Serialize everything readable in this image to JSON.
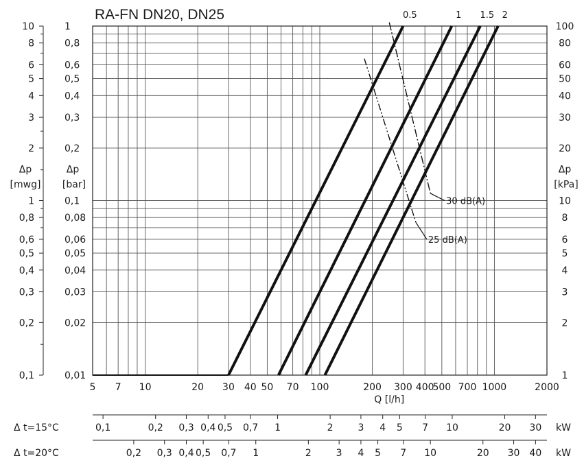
{
  "chart_data": {
    "type": "line",
    "title": "RA-FN  DN20, DN25",
    "x_scale": "log",
    "y_scale": "log",
    "grid": true,
    "xlabel": "Q [l/h]",
    "xlim": [
      5,
      2000
    ],
    "x_ticks": [
      {
        "v": 5,
        "label": "5"
      },
      {
        "v": 7,
        "label": "7"
      },
      {
        "v": 10,
        "label": "10"
      },
      {
        "v": 20,
        "label": "20"
      },
      {
        "v": 30,
        "label": "30"
      },
      {
        "v": 40,
        "label": "40"
      },
      {
        "v": 50,
        "label": "50"
      },
      {
        "v": 70,
        "label": "70"
      },
      {
        "v": 100,
        "label": "100"
      },
      {
        "v": 200,
        "label": "200"
      },
      {
        "v": 300,
        "label": "300"
      },
      {
        "v": 400,
        "label": "400"
      },
      {
        "v": 500,
        "label": "500"
      },
      {
        "v": 700,
        "label": "700"
      },
      {
        "v": 1000,
        "label": "1000"
      },
      {
        "v": 2000,
        "label": "2000"
      }
    ],
    "ylim_bar": [
      0.01,
      1
    ],
    "y_axes": {
      "left_outer": {
        "label_line1": "Δp",
        "label_line2": "[mwg]",
        "ticks": [
          {
            "v": 0.01,
            "label": "0,1"
          },
          {
            "v": 0.02,
            "label": "0,2"
          },
          {
            "v": 0.03,
            "label": "0,3"
          },
          {
            "v": 0.04,
            "label": "0,4"
          },
          {
            "v": 0.05,
            "label": "0,5"
          },
          {
            "v": 0.06,
            "label": "0,6"
          },
          {
            "v": 0.08,
            "label": "0,8"
          },
          {
            "v": 0.1,
            "label": "1"
          },
          {
            "v": 0.2,
            "label": "2"
          },
          {
            "v": 0.3,
            "label": "3"
          },
          {
            "v": 0.4,
            "label": "4"
          },
          {
            "v": 0.5,
            "label": "5"
          },
          {
            "v": 0.6,
            "label": "6"
          },
          {
            "v": 0.8,
            "label": "8"
          },
          {
            "v": 1,
            "label": "10"
          }
        ]
      },
      "left_inner": {
        "label_line1": "Δp",
        "label_line2": "[bar]",
        "ticks": [
          {
            "v": 0.01,
            "label": "0,01"
          },
          {
            "v": 0.02,
            "label": "0,02"
          },
          {
            "v": 0.03,
            "label": "0,03"
          },
          {
            "v": 0.04,
            "label": "0,04"
          },
          {
            "v": 0.05,
            "label": "0,05"
          },
          {
            "v": 0.06,
            "label": "0,06"
          },
          {
            "v": 0.08,
            "label": "0,08"
          },
          {
            "v": 0.1,
            "label": "0,1"
          },
          {
            "v": 0.2,
            "label": "0,2"
          },
          {
            "v": 0.3,
            "label": "0,3"
          },
          {
            "v": 0.4,
            "label": "0,4"
          },
          {
            "v": 0.5,
            "label": "0,5"
          },
          {
            "v": 0.6,
            "label": "0,6"
          },
          {
            "v": 0.8,
            "label": "0,8"
          },
          {
            "v": 1,
            "label": "1"
          }
        ]
      },
      "right": {
        "label_line1": "Δp",
        "label_line2": "[kPa]",
        "ticks": [
          {
            "v": 0.01,
            "label": "1"
          },
          {
            "v": 0.02,
            "label": "2"
          },
          {
            "v": 0.03,
            "label": "3"
          },
          {
            "v": 0.04,
            "label": "4"
          },
          {
            "v": 0.05,
            "label": "5"
          },
          {
            "v": 0.06,
            "label": "6"
          },
          {
            "v": 0.08,
            "label": "8"
          },
          {
            "v": 0.1,
            "label": "10"
          },
          {
            "v": 0.2,
            "label": "20"
          },
          {
            "v": 0.3,
            "label": "30"
          },
          {
            "v": 0.4,
            "label": "40"
          },
          {
            "v": 0.5,
            "label": "50"
          },
          {
            "v": 0.6,
            "label": "60"
          },
          {
            "v": 0.8,
            "label": "80"
          },
          {
            "v": 1,
            "label": "100"
          }
        ]
      }
    },
    "series": [
      {
        "name": "0.5",
        "points": [
          [
            30,
            0.01
          ],
          [
            300,
            1
          ]
        ]
      },
      {
        "name": "1",
        "points": [
          [
            58,
            0.01
          ],
          [
            570,
            1
          ]
        ]
      },
      {
        "name": "1.5",
        "points": [
          [
            83,
            0.01
          ],
          [
            830,
            1
          ]
        ]
      },
      {
        "name": "2",
        "points": [
          [
            107,
            0.01
          ],
          [
            1050,
            1
          ]
        ]
      }
    ],
    "noise_lines": [
      {
        "name": "25 dB(A)",
        "style": "dash-dot-dot",
        "points": [
          [
            180,
            0.65
          ],
          [
            355,
            0.075
          ]
        ],
        "tail": [
          [
            355,
            0.075
          ],
          [
            410,
            0.06
          ]
        ]
      },
      {
        "name": "30 dB(A)",
        "style": "dash-dot",
        "points": [
          [
            250,
            1.05
          ],
          [
            430,
            0.11
          ]
        ],
        "tail": [
          [
            430,
            0.11
          ],
          [
            520,
            0.1
          ]
        ]
      }
    ],
    "power_scales": [
      {
        "label": "Δ t=15°C",
        "unit": "kW",
        "kw_per_lh": 0.017442,
        "ticks": [
          {
            "v": 0.1,
            "label": "0,1"
          },
          {
            "v": 0.2,
            "label": "0,2"
          },
          {
            "v": 0.3,
            "label": "0,3"
          },
          {
            "v": 0.4,
            "label": "0,4"
          },
          {
            "v": 0.5,
            "label": "0,5"
          },
          {
            "v": 0.7,
            "label": "0,7"
          },
          {
            "v": 1,
            "label": "1"
          },
          {
            "v": 2,
            "label": "2"
          },
          {
            "v": 3,
            "label": "3"
          },
          {
            "v": 4,
            "label": "4"
          },
          {
            "v": 5,
            "label": "5"
          },
          {
            "v": 7,
            "label": "7"
          },
          {
            "v": 10,
            "label": "10"
          },
          {
            "v": 20,
            "label": "20"
          },
          {
            "v": 30,
            "label": "30"
          }
        ]
      },
      {
        "label": "Δ t=20°C",
        "unit": "kW",
        "kw_per_lh": 0.023256,
        "ticks": [
          {
            "v": 0.2,
            "label": "0,2"
          },
          {
            "v": 0.3,
            "label": "0,3"
          },
          {
            "v": 0.4,
            "label": "0,4"
          },
          {
            "v": 0.5,
            "label": "0,5"
          },
          {
            "v": 0.7,
            "label": "0,7"
          },
          {
            "v": 1,
            "label": "1"
          },
          {
            "v": 2,
            "label": "2"
          },
          {
            "v": 3,
            "label": "3"
          },
          {
            "v": 4,
            "label": "4"
          },
          {
            "v": 5,
            "label": "5"
          },
          {
            "v": 7,
            "label": "7"
          },
          {
            "v": 10,
            "label": "10"
          },
          {
            "v": 20,
            "label": "20"
          },
          {
            "v": 30,
            "label": "30"
          },
          {
            "v": 40,
            "label": "40"
          }
        ]
      }
    ]
  }
}
